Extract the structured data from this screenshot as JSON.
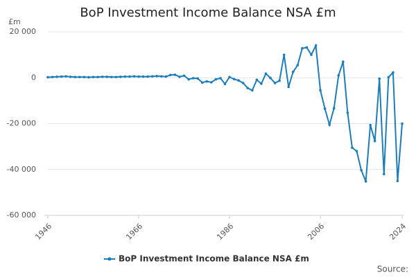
{
  "chart_data": {
    "type": "line",
    "title": "BoP Investment Income Balance NSA £m",
    "y_unit": "£m",
    "source": "Source:",
    "x": [
      1946,
      1947,
      1948,
      1949,
      1950,
      1951,
      1952,
      1953,
      1954,
      1955,
      1956,
      1957,
      1958,
      1959,
      1960,
      1961,
      1962,
      1963,
      1964,
      1965,
      1966,
      1967,
      1968,
      1969,
      1970,
      1971,
      1972,
      1973,
      1974,
      1975,
      1976,
      1977,
      1978,
      1979,
      1980,
      1981,
      1982,
      1983,
      1984,
      1985,
      1986,
      1987,
      1988,
      1989,
      1990,
      1991,
      1992,
      1993,
      1994,
      1995,
      1996,
      1997,
      1998,
      1999,
      2000,
      2001,
      2002,
      2003,
      2004,
      2005,
      2006,
      2007,
      2008,
      2009,
      2010,
      2011,
      2012,
      2013,
      2014,
      2015,
      2016,
      2017,
      2018,
      2019,
      2020,
      2021,
      2022,
      2023,
      2024
    ],
    "series": [
      {
        "name": "BoP Investment Income Balance NSA £m",
        "color": "#1a7dbc",
        "values": [
          200,
          300,
          400,
          500,
          600,
          400,
          300,
          300,
          300,
          200,
          300,
          300,
          400,
          400,
          300,
          300,
          400,
          500,
          500,
          600,
          500,
          500,
          500,
          600,
          700,
          600,
          500,
          1200,
          1300,
          400,
          900,
          -700,
          -200,
          -300,
          -2100,
          -1600,
          -2000,
          -700,
          -200,
          -2700,
          300,
          -600,
          -1200,
          -2300,
          -4500,
          -5500,
          -900,
          -2600,
          1800,
          -100,
          -2300,
          -1300,
          10000,
          -4000,
          2600,
          5500,
          12800,
          13200,
          10000,
          14000,
          -5500,
          -13500,
          -20500,
          -13300,
          1000,
          7000,
          -15300,
          -30500,
          -32000,
          -40300,
          -45200,
          -20600,
          -27600,
          -400,
          -42000,
          200,
          2300,
          -45000,
          -20000
        ]
      }
    ],
    "xlim": [
      1946,
      2024
    ],
    "xticks": [
      1946,
      1966,
      1986,
      2006,
      2024
    ],
    "ylim": [
      -60000,
      20000
    ],
    "yticks": [
      {
        "value": -60000,
        "label": "-60 000"
      },
      {
        "value": -40000,
        "label": "-40 000"
      },
      {
        "value": -20000,
        "label": "-20 000"
      },
      0,
      {
        "value": 20000,
        "label": "20 000"
      }
    ],
    "grid": true
  }
}
